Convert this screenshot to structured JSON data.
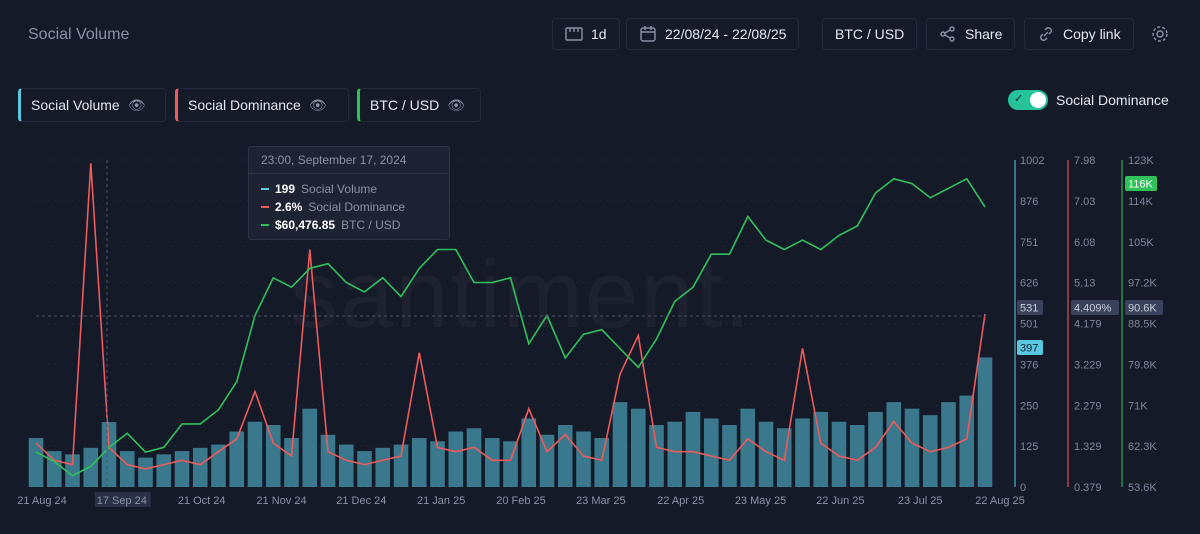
{
  "header": {
    "title": "Social Volume",
    "interval": "1d",
    "date_range": "22/08/24 - 22/08/25",
    "pair": "BTC / USD",
    "share": "Share",
    "copy_link": "Copy link"
  },
  "legend": [
    {
      "label": "Social Volume",
      "color": "#5ac8e0"
    },
    {
      "label": "Social Dominance",
      "color": "#ef5a5a"
    },
    {
      "label": "BTC / USD",
      "color": "#2fc25b"
    }
  ],
  "toggle": {
    "label": "Social Dominance",
    "on": true
  },
  "watermark": "santiment.",
  "tooltip": {
    "date": "23:00, September 17, 2024",
    "rows": [
      {
        "value": "199",
        "name": "Social Volume",
        "color": "#5ac8e0"
      },
      {
        "value": "2.6%",
        "name": "Social Dominance",
        "color": "#ef5a5a"
      },
      {
        "value": "$60,476.85",
        "name": "BTC / USD",
        "color": "#2fc25b"
      }
    ]
  },
  "chart_data": {
    "type": "line",
    "x_tick_labels": [
      "21 Aug 24",
      "17 Sep 24",
      "21 Oct 24",
      "21 Nov 24",
      "21 Dec 24",
      "21 Jan 25",
      "20 Feb 25",
      "23 Mar 25",
      "22 Apr 25",
      "23 May 25",
      "22 Jun 25",
      "23 Jul 25",
      "22 Aug 25"
    ],
    "axes": {
      "social_volume": {
        "ticks": [
          "0",
          "125",
          "250",
          "376",
          "501",
          "626",
          "751",
          "876",
          "1002"
        ],
        "range": [
          0,
          1002
        ],
        "current": "397",
        "crosshair": "531"
      },
      "social_dominance": {
        "ticks": [
          "0.379",
          "1.329",
          "2.279",
          "3.229",
          "4.179",
          "5.13",
          "6.08",
          "7.03",
          "7.98"
        ],
        "range": [
          0.379,
          7.98
        ],
        "crosshair": "4.409%"
      },
      "btc_usd": {
        "ticks": [
          "53.6K",
          "62.3K",
          "71K",
          "79.8K",
          "88.5K",
          "97.2K",
          "105K",
          "114K",
          "123K"
        ],
        "range": [
          53.6,
          123
        ],
        "current": "116K",
        "crosshair": "90.6K"
      }
    },
    "x": [
      "2024-08-22",
      "2024-08-29",
      "2024-09-05",
      "2024-09-12",
      "2024-09-19",
      "2024-09-26",
      "2024-10-03",
      "2024-10-10",
      "2024-10-17",
      "2024-10-24",
      "2024-10-31",
      "2024-11-07",
      "2024-11-14",
      "2024-11-21",
      "2024-11-28",
      "2024-12-05",
      "2024-12-12",
      "2024-12-19",
      "2024-12-26",
      "2025-01-02",
      "2025-01-09",
      "2025-01-16",
      "2025-01-23",
      "2025-01-30",
      "2025-02-06",
      "2025-02-13",
      "2025-02-20",
      "2025-02-27",
      "2025-03-06",
      "2025-03-13",
      "2025-03-20",
      "2025-03-27",
      "2025-04-03",
      "2025-04-10",
      "2025-04-17",
      "2025-04-24",
      "2025-05-01",
      "2025-05-08",
      "2025-05-15",
      "2025-05-22",
      "2025-05-29",
      "2025-06-05",
      "2025-06-12",
      "2025-06-19",
      "2025-06-26",
      "2025-07-03",
      "2025-07-10",
      "2025-07-17",
      "2025-07-24",
      "2025-07-31",
      "2025-08-07",
      "2025-08-14",
      "2025-08-21"
    ],
    "series": [
      {
        "name": "Social Volume",
        "color": "#5ac8e0",
        "values": [
          150,
          110,
          100,
          120,
          199,
          110,
          90,
          100,
          110,
          120,
          130,
          170,
          200,
          190,
          150,
          240,
          160,
          130,
          110,
          120,
          130,
          150,
          140,
          170,
          180,
          150,
          140,
          210,
          160,
          190,
          170,
          150,
          260,
          240,
          190,
          200,
          230,
          210,
          190,
          240,
          200,
          180,
          210,
          230,
          200,
          190,
          230,
          260,
          240,
          220,
          260,
          280,
          397
        ]
      },
      {
        "name": "Social Dominance",
        "color": "#ef5a5a",
        "values": [
          1.4,
          1.0,
          0.9,
          7.9,
          1.3,
          0.9,
          0.8,
          0.9,
          1.0,
          0.9,
          1.2,
          1.5,
          2.6,
          1.4,
          1.1,
          5.9,
          1.2,
          1.0,
          0.9,
          1.0,
          1.1,
          3.5,
          1.3,
          1.2,
          1.3,
          1.0,
          1.0,
          2.2,
          1.2,
          1.6,
          1.1,
          1.0,
          3.0,
          3.9,
          1.3,
          1.2,
          1.2,
          1.1,
          1.0,
          1.5,
          1.2,
          1.0,
          3.6,
          1.4,
          1.1,
          1.0,
          1.3,
          1.9,
          1.4,
          1.2,
          1.3,
          1.5,
          4.4
        ]
      },
      {
        "name": "BTC / USD",
        "color": "#2fc25b",
        "values": [
          61,
          59,
          56,
          58,
          62,
          65,
          61,
          62,
          67,
          67,
          70,
          76,
          90,
          98,
          96,
          100,
          101,
          97,
          95,
          98,
          94,
          100,
          104,
          104,
          97,
          97,
          98,
          84,
          90,
          81,
          86,
          87,
          83,
          79,
          85,
          93,
          96,
          103,
          103,
          111,
          106,
          104,
          106,
          104,
          107,
          109,
          116,
          119,
          118,
          115,
          117,
          119,
          113
        ]
      }
    ]
  }
}
